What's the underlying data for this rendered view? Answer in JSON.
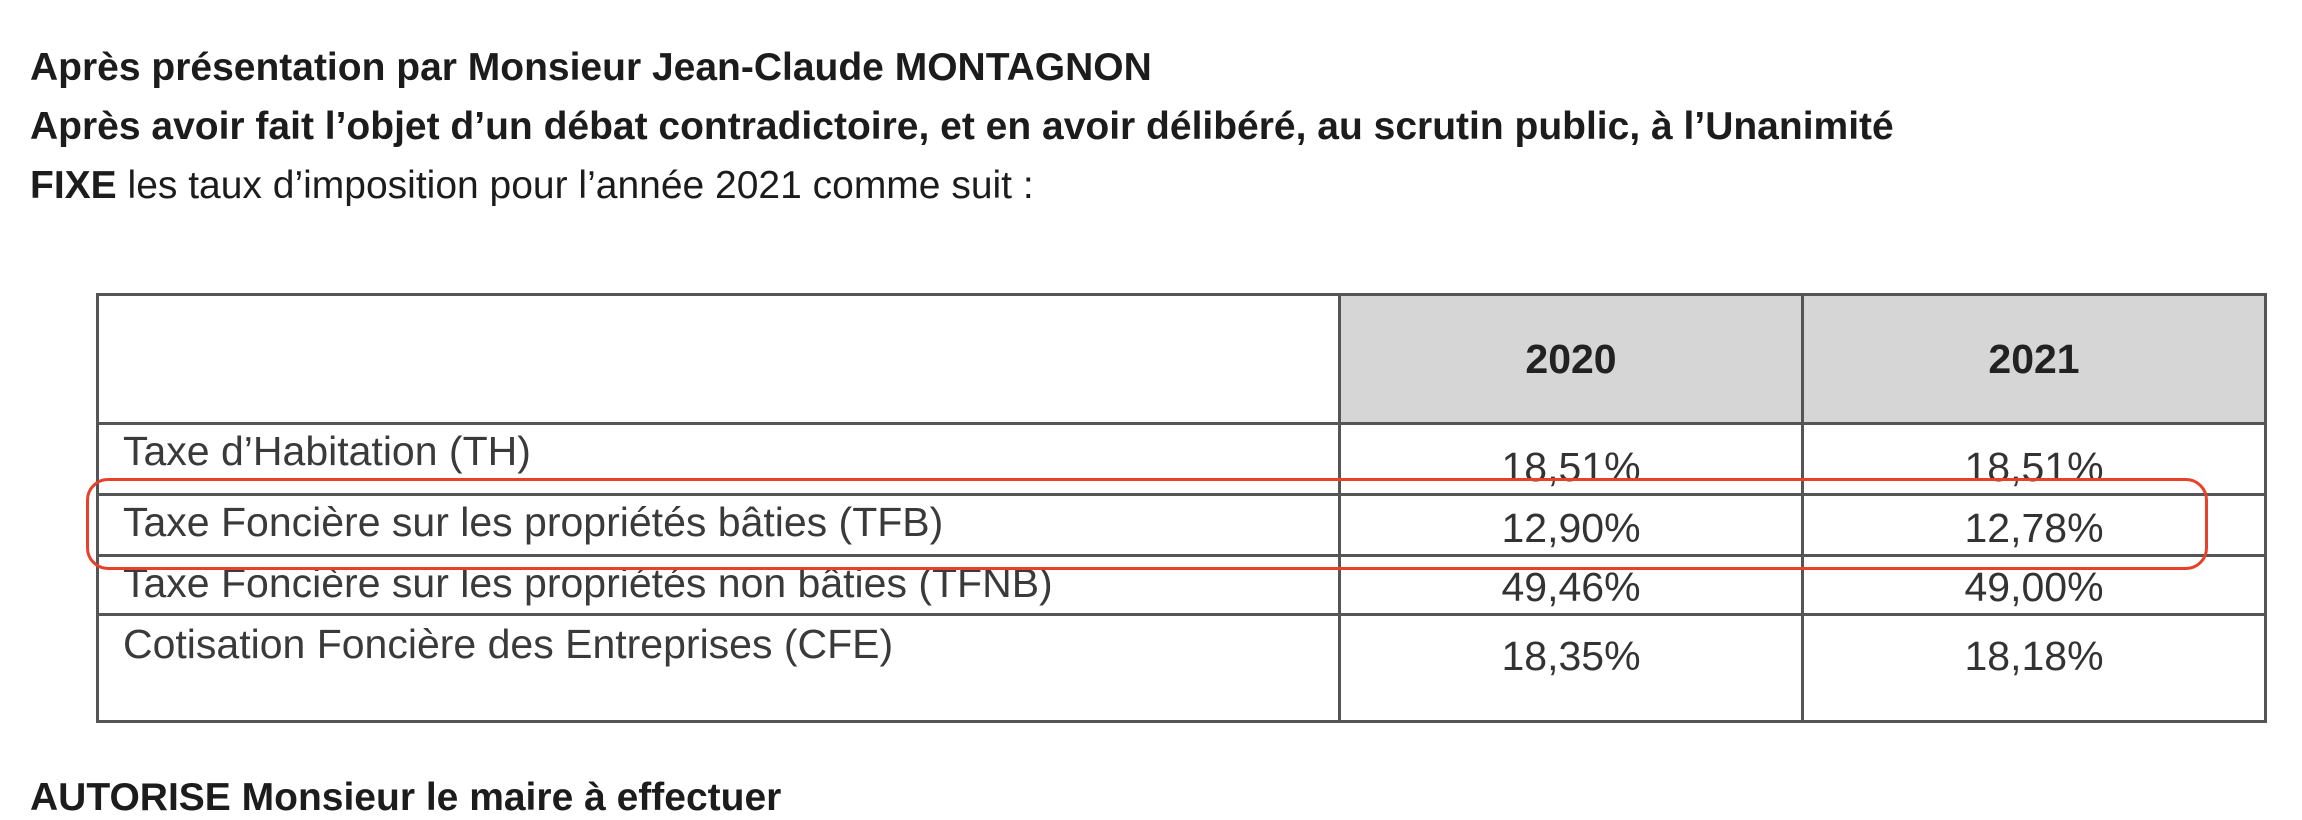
{
  "intro": {
    "line1": "Après présentation par Monsieur Jean-Claude MONTAGNON",
    "line2": "Après avoir fait l’objet d’un débat contradictoire, et en avoir délibéré, au scrutin public, à l’Unanimité",
    "line3_bold": "FIXE",
    "line3_rest": " les taux d’imposition pour l’année 2021 comme suit :"
  },
  "table": {
    "columns": [
      "2020",
      "2021"
    ],
    "rows": [
      {
        "label": "Taxe d’Habitation (TH)",
        "v2020": "18,51%",
        "v2021": "18,51%"
      },
      {
        "label": "Taxe Foncière sur les propriétés bâties (TFB)",
        "v2020": "12,90%",
        "v2021": "12,78%"
      },
      {
        "label": "Taxe Foncière sur les propriétés non bâties (TFNB)",
        "v2020": "49,46%",
        "v2021": "49,00%"
      },
      {
        "label": "Cotisation Foncière des Entreprises (CFE)",
        "v2020": "18,35%",
        "v2021": "18,18%"
      }
    ]
  },
  "highlight": {
    "color": "#e8402a",
    "row": "Taxe Foncière sur les propriétés bâties (TFB)"
  },
  "cut_line": "AUTORISE Monsieur le maire à effectuer"
}
